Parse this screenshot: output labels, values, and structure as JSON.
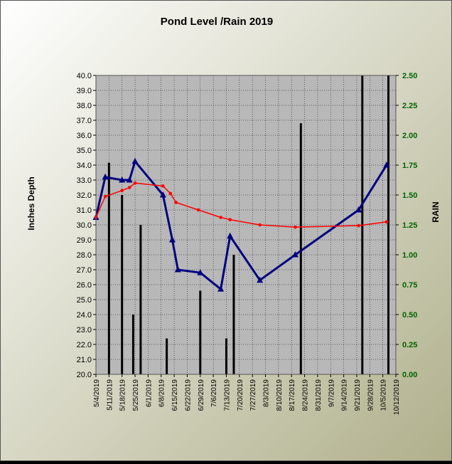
{
  "chart_data": {
    "type": "line",
    "title": "Pond Level /Rain 2019",
    "ylabel": "Inches Depth",
    "y2label": "RAIN",
    "ylim": [
      20,
      40
    ],
    "y2lim": [
      0,
      2.5
    ],
    "yticks": [
      "20.0",
      "21.0",
      "22.0",
      "23.0",
      "24.0",
      "25.0",
      "26.0",
      "27.0",
      "28.0",
      "29.0",
      "30.0",
      "31.0",
      "32.0",
      "33.0",
      "34.0",
      "35.0",
      "36.0",
      "37.0",
      "38.0",
      "39.0",
      "40.0"
    ],
    "y2ticks": [
      "0.00",
      "0.25",
      "0.50",
      "0.75",
      "1.00",
      "1.25",
      "1.50",
      "1.75",
      "2.00",
      "2.25",
      "2.50"
    ],
    "xticks": [
      "5/4/2019",
      "5/11/2019",
      "5/18/2019",
      "5/25/2019",
      "6/1/2019",
      "6/8/2019",
      "6/15/2019",
      "6/22/2019",
      "6/29/2019",
      "7/6/2019",
      "7/13/2019",
      "7/20/2019",
      "7/27/2019",
      "8/3/2019",
      "8/10/2019",
      "8/17/2019",
      "8/24/2019",
      "8/31/2019",
      "9/7/2019",
      "9/14/2019",
      "9/21/2019",
      "9/28/2019",
      "10/5/2019",
      "10/12/2019"
    ],
    "grid": true,
    "background_colors": {
      "plot": "#b8b8b8",
      "page_gradient": [
        "#ffffff",
        "#b0b08c"
      ]
    },
    "series": [
      {
        "style": "bars",
        "axis": "right",
        "color": "#000000",
        "points": [
          [
            "5/4/2019",
            0
          ],
          [
            "5/11/2019",
            1.77
          ],
          [
            "5/18/2019",
            1.5
          ],
          [
            "5/24/2019",
            0.5
          ],
          [
            "5/28/2019",
            1.25
          ],
          [
            "6/11/2019",
            0.3
          ],
          [
            "6/29/2019",
            0.7
          ],
          [
            "7/13/2019",
            0.3
          ],
          [
            "7/17/2019",
            1.0
          ],
          [
            "8/22/2019",
            2.1
          ],
          [
            "9/24/2019",
            2.5
          ],
          [
            "10/8/2019",
            2.5
          ]
        ]
      },
      {
        "style": "line",
        "axis": "left",
        "color": "#000080",
        "marker": "triangle",
        "points": [
          [
            "5/4/2019",
            30.5
          ],
          [
            "5/9/2019",
            33.2
          ],
          [
            "5/18/2019",
            33.0
          ],
          [
            "5/22/2019",
            33.0
          ],
          [
            "5/25/2019",
            34.25
          ],
          [
            "6/9/2019",
            32.0
          ],
          [
            "6/14/2019",
            29.0
          ],
          [
            "6/17/2019",
            27.0
          ],
          [
            "6/29/2019",
            26.8
          ],
          [
            "7/10/2019",
            25.7
          ],
          [
            "7/15/2019",
            29.25
          ],
          [
            "7/31/2019",
            26.3
          ],
          [
            "8/19/2019",
            28.0
          ],
          [
            "9/22/2019",
            31.0
          ],
          [
            "10/7/2019",
            34.0
          ]
        ]
      },
      {
        "style": "line",
        "axis": "left",
        "color": "#ff0000",
        "marker": "dot",
        "points": [
          [
            "5/4/2019",
            30.5
          ],
          [
            "5/9/2019",
            31.9
          ],
          [
            "5/18/2019",
            32.3
          ],
          [
            "5/22/2019",
            32.5
          ],
          [
            "5/25/2019",
            32.8
          ],
          [
            "6/9/2019",
            32.6
          ],
          [
            "6/13/2019",
            32.1
          ],
          [
            "6/16/2019",
            31.5
          ],
          [
            "6/28/2019",
            31.0
          ],
          [
            "7/10/2019",
            30.5
          ],
          [
            "7/15/2019",
            30.35
          ],
          [
            "7/31/2019",
            30.0
          ],
          [
            "8/19/2019",
            29.85
          ],
          [
            "9/22/2019",
            29.95
          ],
          [
            "10/7/2019",
            30.2
          ]
        ]
      }
    ]
  }
}
